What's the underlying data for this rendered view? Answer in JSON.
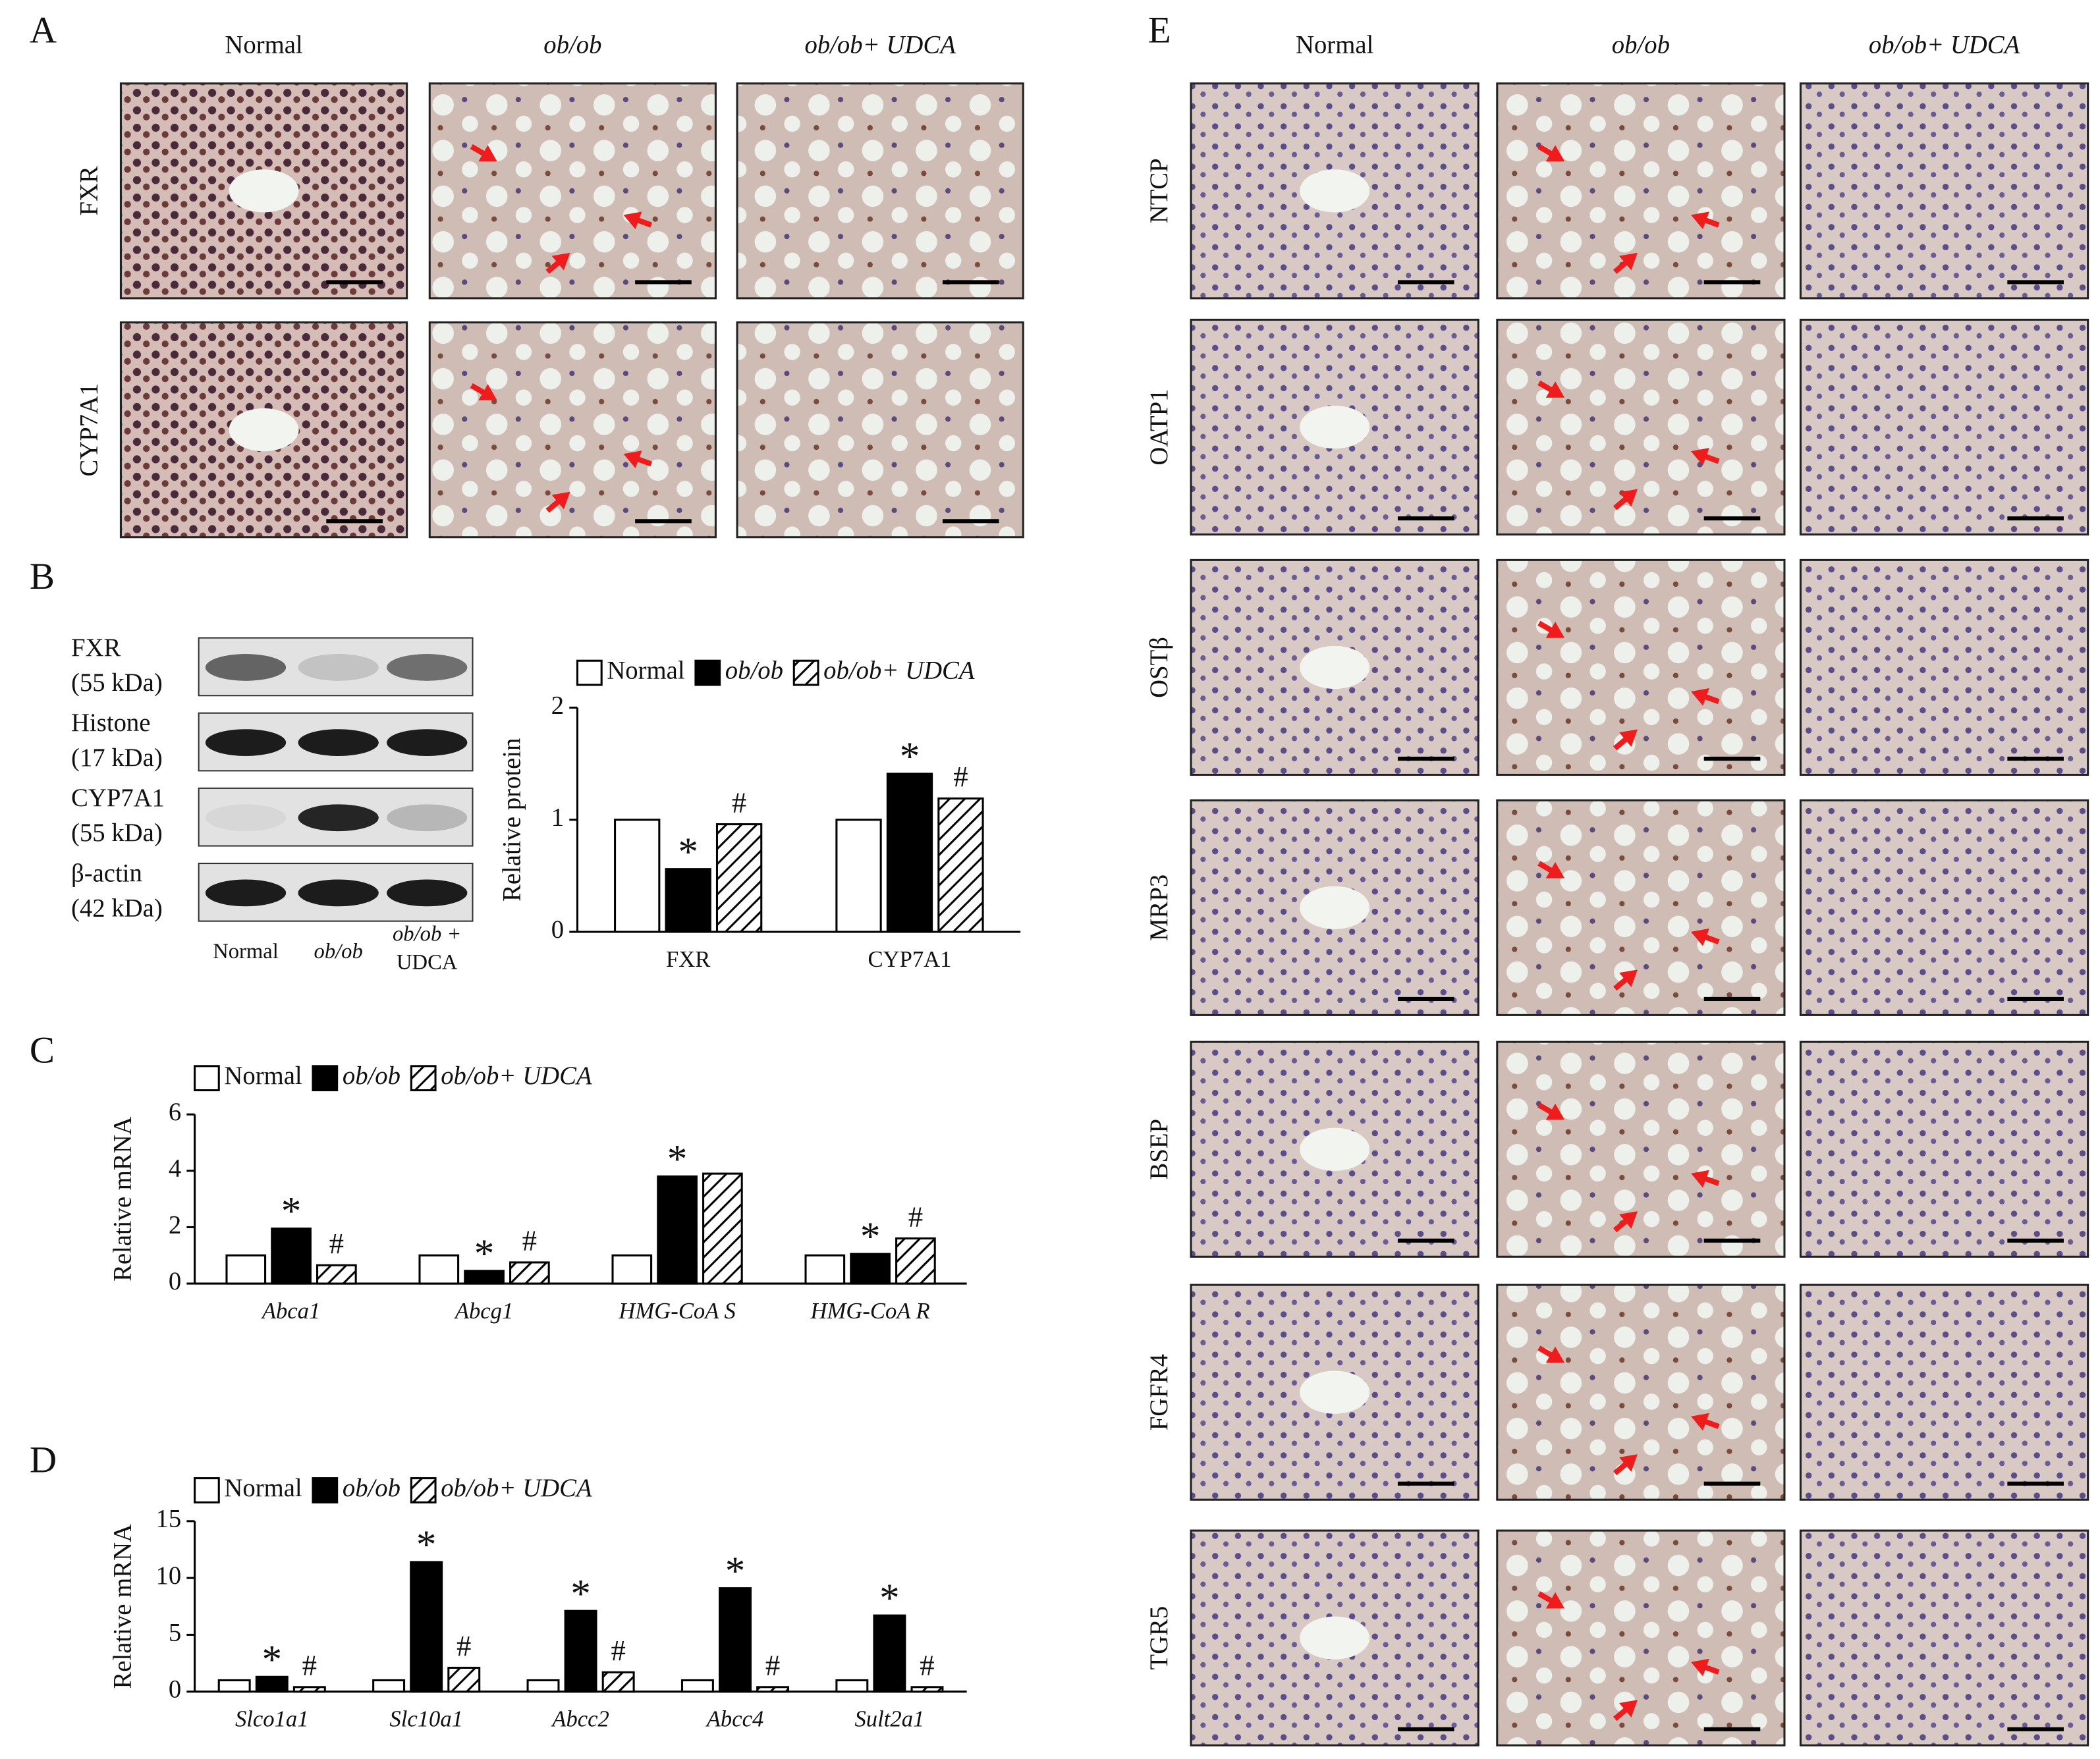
{
  "panel_labels": [
    "A",
    "B",
    "C",
    "D",
    "E"
  ],
  "panel_a": {
    "columns": [
      "Normal",
      "ob/ob",
      "ob/ob+ UDCA"
    ],
    "rows": [
      "FXR",
      "CYP7A1"
    ]
  },
  "panel_e": {
    "columns": [
      "Normal",
      "ob/ob",
      "ob/ob+ UDCA"
    ],
    "rows": [
      "NTCP",
      "OATP1",
      "OSTβ",
      "MRP3",
      "BSEP",
      "FGFR4",
      "TGR5"
    ]
  },
  "blot": {
    "rows": [
      {
        "name": "FXR",
        "size": "(55 kDa)"
      },
      {
        "name": "Histone",
        "size": "(17 kDa)"
      },
      {
        "name": "CYP7A1",
        "size": "(55  kDa)"
      },
      {
        "name": "β-actin",
        "size": "(42 kDa)"
      }
    ],
    "lanes": [
      "Normal",
      "ob/ob",
      "ob/ob +",
      "UDCA"
    ]
  },
  "chart_data": [
    {
      "type": "bar",
      "ylabel": "Relative protein",
      "categories": [
        "FXR",
        "CYP7A1"
      ],
      "ylim": [
        0,
        2
      ],
      "yticks": [
        0,
        1,
        2
      ],
      "series": [
        {
          "name": "Normal",
          "color": "#ffffff",
          "values": [
            1,
            1
          ]
        },
        {
          "name": "ob/ob",
          "color": "#000000",
          "values": [
            0.56,
            1.41
          ],
          "markers": [
            "*",
            "*"
          ]
        },
        {
          "name": "ob/ob+ UDCA",
          "color": "#000000",
          "hatch": true,
          "values": [
            0.96,
            1.19
          ],
          "markers": [
            "#",
            "#"
          ]
        }
      ]
    },
    {
      "type": "bar",
      "ylabel": "Relative mRNA",
      "categories": [
        "Abca1",
        "Abcg1",
        "HMG-CoA S",
        "HMG-CoA R"
      ],
      "italic_categories": true,
      "ylim": [
        0,
        6
      ],
      "yticks": [
        0,
        2,
        4,
        6
      ],
      "series": [
        {
          "name": "Normal",
          "color": "#ffffff",
          "values": [
            1,
            1,
            1,
            1
          ]
        },
        {
          "name": "ob/ob",
          "color": "#000000",
          "values": [
            1.95,
            0.45,
            3.8,
            1.05
          ],
          "markers": [
            "*",
            "*",
            "*",
            "*"
          ]
        },
        {
          "name": "ob/ob+ UDCA",
          "color": "#000000",
          "hatch": true,
          "values": [
            0.65,
            0.75,
            3.9,
            1.6
          ],
          "markers": [
            "#",
            "#",
            null,
            "#"
          ]
        }
      ]
    },
    {
      "type": "bar",
      "ylabel": "Relative mRNA",
      "categories": [
        "Slco1a1",
        "Slc10a1",
        "Abcc2",
        "Abcc4",
        "Sult2a1"
      ],
      "italic_categories": true,
      "ylim": [
        0,
        15
      ],
      "yticks": [
        0,
        5,
        10,
        15
      ],
      "series": [
        {
          "name": "Normal",
          "color": "#ffffff",
          "values": [
            1,
            1,
            1,
            1,
            1
          ]
        },
        {
          "name": "ob/ob",
          "color": "#000000",
          "values": [
            1.3,
            11.4,
            7.1,
            9.1,
            6.7
          ],
          "markers": [
            "*",
            "*",
            "*",
            "*",
            "*"
          ]
        },
        {
          "name": "ob/ob+ UDCA",
          "color": "#000000",
          "hatch": true,
          "values": [
            0.4,
            2.1,
            1.7,
            0.4,
            0.4
          ],
          "markers": [
            "#",
            "#",
            "#",
            "#",
            "#"
          ]
        }
      ]
    }
  ]
}
